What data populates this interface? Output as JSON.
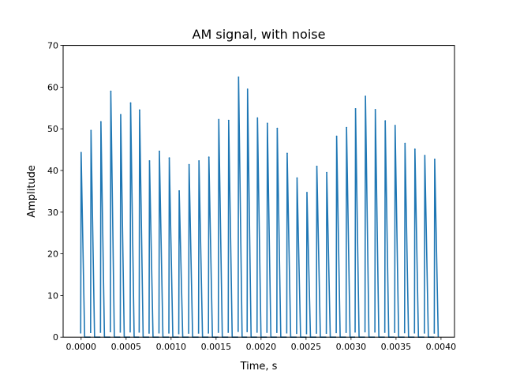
{
  "chart_data": {
    "type": "line",
    "title": "AM signal, with noise",
    "xlabel": "Time, s",
    "ylabel": "Amplitude",
    "xlim": [
      -0.0002,
      0.00415
    ],
    "ylim": [
      0,
      70
    ],
    "xticks": [
      0.0,
      0.0005,
      0.001,
      0.0015,
      0.002,
      0.0025,
      0.003,
      0.0035,
      0.004
    ],
    "xtick_labels": [
      "0.0000",
      "0.0005",
      "0.0010",
      "0.0015",
      "0.0020",
      "0.0025",
      "0.0030",
      "0.0035",
      "0.0040"
    ],
    "yticks": [
      0,
      10,
      20,
      30,
      40,
      50,
      60,
      70
    ],
    "ytick_labels": [
      "0",
      "10",
      "20",
      "30",
      "40",
      "50",
      "60",
      "70"
    ],
    "grid": false,
    "line_color": "#1f77b4",
    "series": [
      {
        "name": "",
        "peaks": [
          {
            "t": 0.0,
            "v": 44.3
          },
          {
            "t": 0.00011,
            "v": 49.6
          },
          {
            "t": 0.00022,
            "v": 51.7
          },
          {
            "t": 0.00033,
            "v": 59.0
          },
          {
            "t": 0.00044,
            "v": 53.4
          },
          {
            "t": 0.00055,
            "v": 56.2
          },
          {
            "t": 0.00065,
            "v": 54.5
          },
          {
            "t": 0.00076,
            "v": 42.3
          },
          {
            "t": 0.00087,
            "v": 44.6
          },
          {
            "t": 0.00098,
            "v": 43.0
          },
          {
            "t": 0.00109,
            "v": 35.1
          },
          {
            "t": 0.0012,
            "v": 41.4
          },
          {
            "t": 0.00131,
            "v": 42.3
          },
          {
            "t": 0.00142,
            "v": 43.2
          },
          {
            "t": 0.00153,
            "v": 52.2
          },
          {
            "t": 0.00164,
            "v": 52.0
          },
          {
            "t": 0.00175,
            "v": 62.4
          },
          {
            "t": 0.00185,
            "v": 59.5
          },
          {
            "t": 0.00196,
            "v": 52.6
          },
          {
            "t": 0.00207,
            "v": 51.3
          },
          {
            "t": 0.00218,
            "v": 50.1
          },
          {
            "t": 0.00229,
            "v": 44.1
          },
          {
            "t": 0.0024,
            "v": 38.2
          },
          {
            "t": 0.00251,
            "v": 34.7
          },
          {
            "t": 0.00262,
            "v": 41.0
          },
          {
            "t": 0.00273,
            "v": 39.5
          },
          {
            "t": 0.00284,
            "v": 48.2
          },
          {
            "t": 0.00295,
            "v": 50.3
          },
          {
            "t": 0.00305,
            "v": 54.8
          },
          {
            "t": 0.00316,
            "v": 57.8
          },
          {
            "t": 0.00327,
            "v": 54.6
          },
          {
            "t": 0.00338,
            "v": 51.9
          },
          {
            "t": 0.00349,
            "v": 50.8
          },
          {
            "t": 0.0036,
            "v": 46.5
          },
          {
            "t": 0.00371,
            "v": 45.1
          },
          {
            "t": 0.00382,
            "v": 43.6
          },
          {
            "t": 0.00393,
            "v": 42.7
          }
        ]
      }
    ]
  }
}
